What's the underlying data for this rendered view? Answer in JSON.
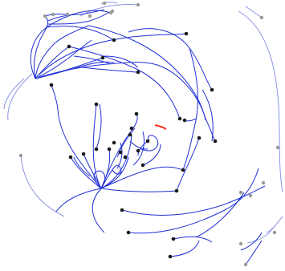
{
  "diagram": {
    "kind": "vector-field-trajectories",
    "colors": {
      "background": "#ffffff",
      "trajectory": "#1f2fd6",
      "trajectory_faded": "#8a93e6",
      "seed_point": "#1a1a1a",
      "seed_point_faded": "#9a9a9a",
      "marker_accent": "#ff2a1a"
    },
    "trajectory_count": 56,
    "seed_point_count": 48,
    "highlight": {
      "label": "",
      "note": ""
    }
  }
}
